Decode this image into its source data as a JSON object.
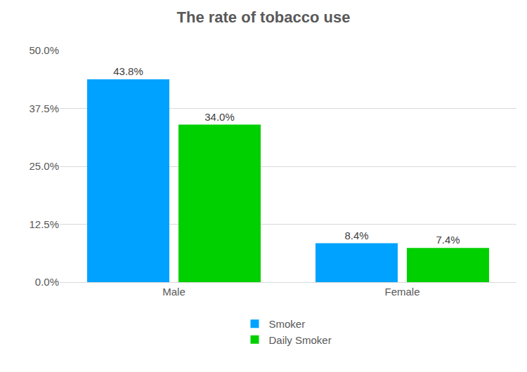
{
  "chart_data": {
    "type": "bar",
    "title": "The rate of tobacco use",
    "categories": [
      "Male",
      "Female"
    ],
    "series": [
      {
        "name": "Smoker",
        "color": "#00a2ff",
        "values": [
          43.8,
          8.4
        ],
        "value_labels": [
          "43.8%",
          "8.4%"
        ]
      },
      {
        "name": "Daily Smoker",
        "color": "#00d000",
        "values": [
          34.0,
          7.4
        ],
        "value_labels": [
          "34.0%",
          "7.4%"
        ]
      }
    ],
    "ylim": [
      0,
      50
    ],
    "yticks": [
      {
        "value": 0,
        "label": "0.0%"
      },
      {
        "value": 12.5,
        "label": "12.5%"
      },
      {
        "value": 25,
        "label": "25.0%"
      },
      {
        "value": 37.5,
        "label": "37.5%"
      },
      {
        "value": 50,
        "label": "50.0%"
      }
    ],
    "grid": true,
    "data_labels": true,
    "legend": "bottom"
  }
}
